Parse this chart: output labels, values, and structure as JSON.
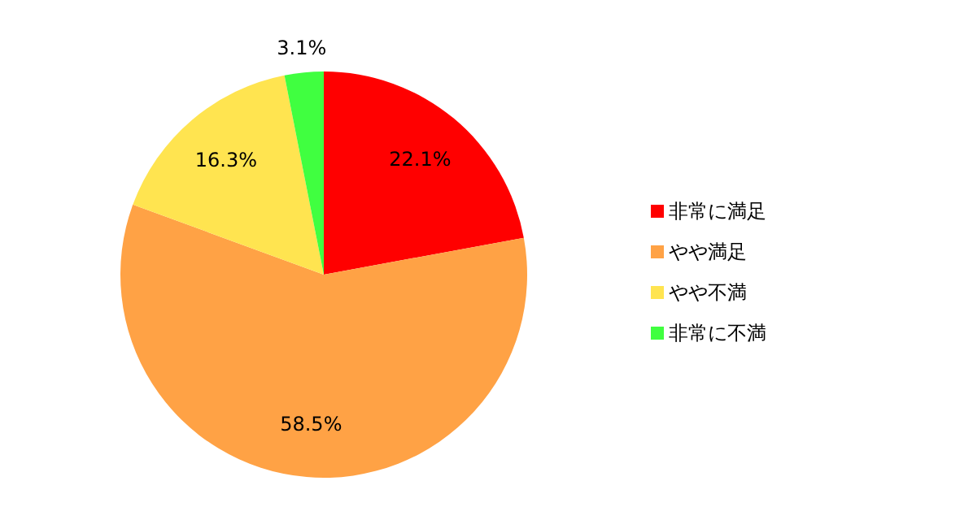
{
  "chart_data": {
    "type": "pie",
    "categories": [
      "非常に満足",
      "やや満足",
      "やや不満",
      "非常に不満"
    ],
    "values": [
      22.1,
      58.5,
      16.3,
      3.1
    ],
    "value_labels": [
      "22.1%",
      "58.5%",
      "16.3%",
      "3.1%"
    ],
    "colors": [
      "#ff0000",
      "#ffa245",
      "#ffe450",
      "#40ff40"
    ],
    "legend": "right"
  }
}
